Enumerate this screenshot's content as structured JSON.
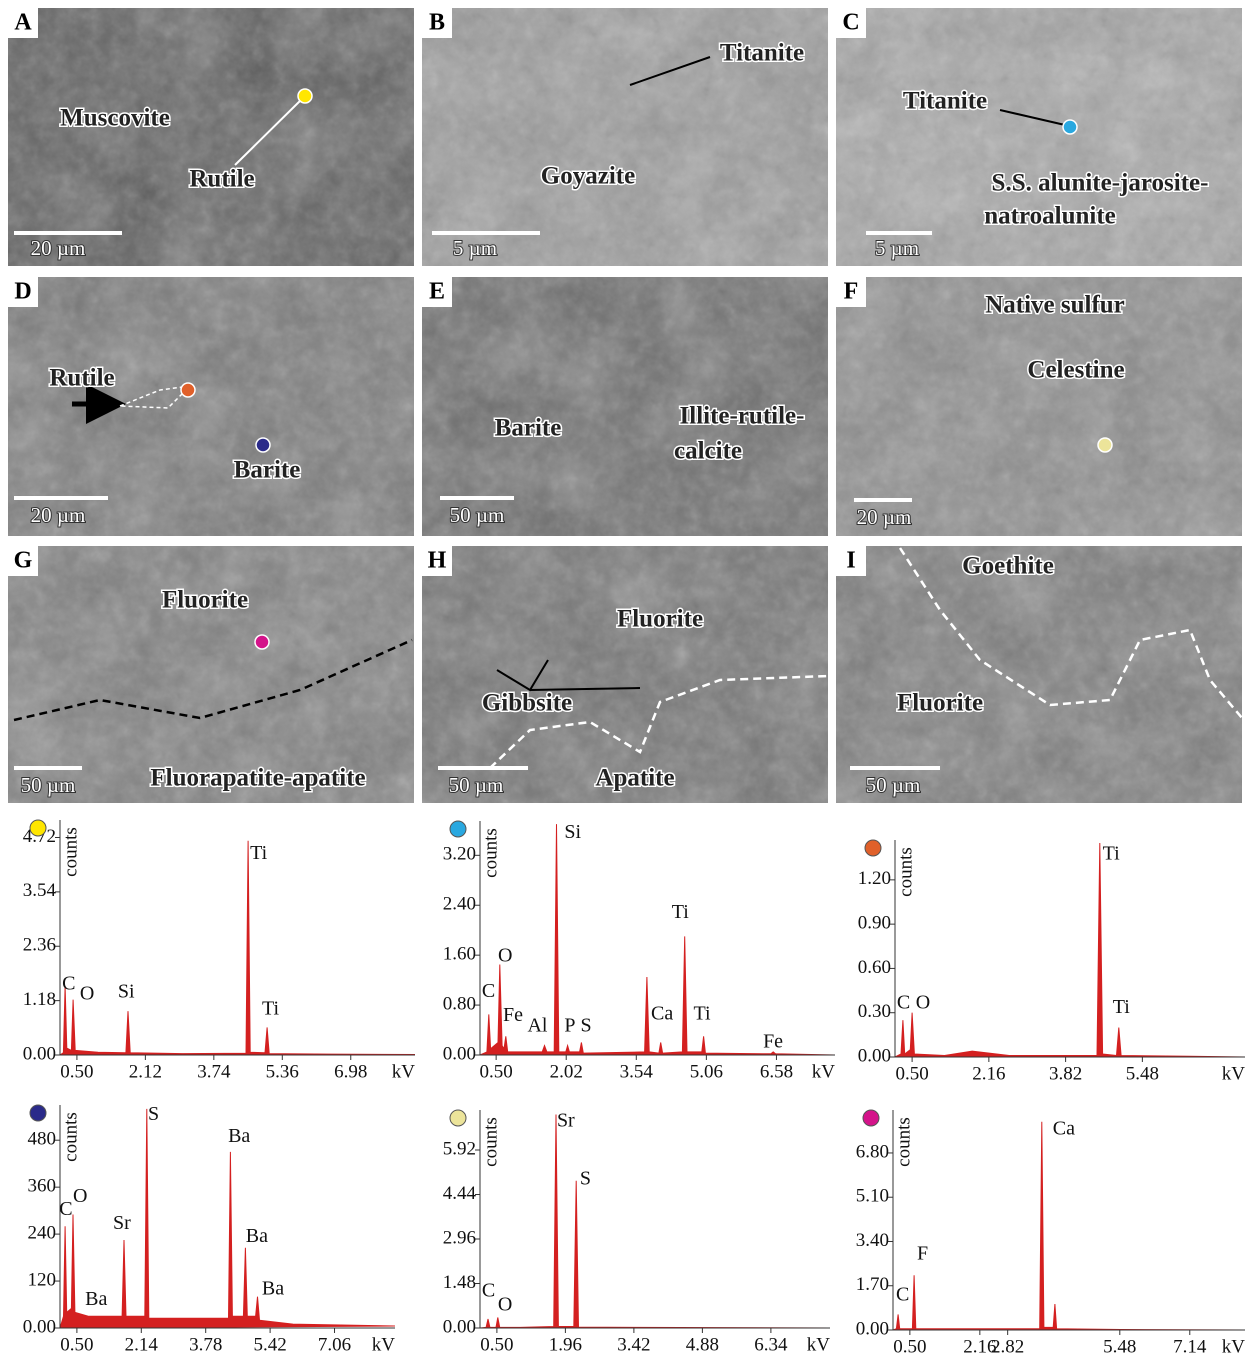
{
  "panels": [
    {
      "letter": "A",
      "labels": [
        "Muscovite",
        "Rutile"
      ],
      "scale": "20 µm"
    },
    {
      "letter": "B",
      "labels": [
        "Titanite",
        "Goyazite"
      ],
      "scale": "5 µm"
    },
    {
      "letter": "C",
      "labels": [
        "Titanite",
        "S.S. alunite-jarosite-",
        "natroalunite"
      ],
      "scale": "5 µm"
    },
    {
      "letter": "D",
      "labels": [
        "Rutile",
        "Barite"
      ],
      "scale": "20 µm"
    },
    {
      "letter": "E",
      "labels": [
        "Barite",
        "Illite-rutile-",
        "calcite"
      ],
      "scale": "50 µm"
    },
    {
      "letter": "F",
      "labels": [
        "Native sulfur",
        "Celestine"
      ],
      "scale": "20 µm"
    },
    {
      "letter": "G",
      "labels": [
        "Fluorite",
        "Fluorapatite-apatite"
      ],
      "scale": "50 µm"
    },
    {
      "letter": "H",
      "labels": [
        "Fluorite",
        "Gibbsite",
        "Apatite"
      ],
      "scale": "50 µm"
    },
    {
      "letter": "I",
      "labels": [
        "Goethite",
        "Fluorite"
      ],
      "scale": "50 µm"
    }
  ],
  "chart_data": [
    {
      "type": "area",
      "marker_color": "#ffe600",
      "color": "#d42020",
      "xlabel": "kV",
      "ylabel": "counts",
      "xlim": [
        0.1,
        8.5
      ],
      "ylim": [
        0,
        5.1
      ],
      "xticks": [
        {
          "value": 0.5,
          "label": "0.50"
        },
        2.12,
        3.74,
        5.36,
        6.98
      ],
      "yticks": [
        {
          "value": 0,
          "label": "0.00"
        },
        1.18,
        2.36,
        3.54,
        4.72
      ],
      "x": [
        0.1,
        0.18,
        0.22,
        0.26,
        0.37,
        0.41,
        0.46,
        1.0,
        1.66,
        1.71,
        1.76,
        3.0,
        4.5,
        4.55,
        4.6,
        4.95,
        5.0,
        5.05,
        6.5,
        8.5
      ],
      "values": [
        0,
        0.05,
        1.5,
        0.15,
        0.1,
        1.2,
        0.1,
        0.06,
        0.05,
        0.95,
        0.05,
        0.03,
        0.04,
        4.65,
        0.06,
        0.05,
        0.6,
        0.03,
        0.02,
        0.01
      ],
      "annotations": [
        {
          "text": "C",
          "x": 0.15,
          "y": 1.52
        },
        {
          "text": "O",
          "x": 0.57,
          "y": 1.3
        },
        {
          "text": "Si",
          "x": 1.47,
          "y": 1.35
        },
        {
          "text": "Ti",
          "x": 4.6,
          "y": 4.35
        },
        {
          "text": "Ti",
          "x": 4.88,
          "y": 0.98
        }
      ]
    },
    {
      "type": "area",
      "marker_color": "#29a8e0",
      "color": "#d42020",
      "xlabel": "kV",
      "ylabel": "counts",
      "xlim": [
        0.15,
        7.85
      ],
      "ylim": [
        0,
        3.75
      ],
      "xticks": [
        {
          "value": 0.5,
          "label": "0.50"
        },
        2.02,
        3.54,
        5.06,
        6.58
      ],
      "yticks": [
        {
          "value": 0,
          "label": "0.00"
        },
        {
          "value": 0.8,
          "label": "0.80"
        },
        {
          "value": 1.6,
          "label": "1.60"
        },
        {
          "value": 2.4,
          "label": "2.40"
        },
        {
          "value": 3.2,
          "label": "3.20"
        }
      ],
      "x": [
        0.15,
        0.3,
        0.34,
        0.38,
        0.54,
        0.58,
        0.63,
        0.67,
        0.71,
        0.75,
        1.5,
        1.55,
        1.6,
        1.76,
        1.81,
        1.86,
        2.01,
        2.05,
        2.09,
        2.31,
        2.35,
        2.39,
        3.72,
        3.77,
        3.82,
        4.03,
        4.07,
        4.11,
        4.54,
        4.59,
        4.64,
        4.96,
        5.0,
        5.04,
        6.46,
        6.51,
        6.56,
        7.85
      ],
      "values": [
        0,
        0.05,
        0.65,
        0.1,
        0.2,
        1.45,
        0.15,
        0.1,
        0.3,
        0.05,
        0.05,
        0.15,
        0.05,
        0.05,
        3.7,
        0.05,
        0.05,
        0.15,
        0.05,
        0.05,
        0.2,
        0.03,
        0.05,
        1.25,
        0.05,
        0.03,
        0.2,
        0.03,
        0.05,
        1.9,
        0.05,
        0.05,
        0.3,
        0.03,
        0.02,
        0.05,
        0.02,
        0
      ],
      "annotations": [
        {
          "text": "C",
          "x": 0.19,
          "y": 1.0
        },
        {
          "text": "O",
          "x": 0.54,
          "y": 1.57
        },
        {
          "text": "Fe",
          "x": 0.65,
          "y": 0.62
        },
        {
          "text": "Al",
          "x": 1.18,
          "y": 0.45
        },
        {
          "text": "P",
          "x": 1.98,
          "y": 0.45
        },
        {
          "text": "S",
          "x": 2.33,
          "y": 0.45
        },
        {
          "text": "Si",
          "x": 1.98,
          "y": 3.55
        },
        {
          "text": "Ca",
          "x": 3.86,
          "y": 0.64
        },
        {
          "text": "Ti",
          "x": 4.31,
          "y": 2.27
        },
        {
          "text": "Ti",
          "x": 4.78,
          "y": 0.64
        },
        {
          "text": "Fe",
          "x": 6.29,
          "y": 0.19
        }
      ]
    },
    {
      "type": "area",
      "marker_color": "#e0602a",
      "color": "#d42020",
      "xlabel": "kV",
      "ylabel": "counts",
      "xlim": [
        0.13,
        7.7
      ],
      "ylim": [
        0,
        1.47
      ],
      "xticks": [
        {
          "value": 0.5,
          "label": "0.50"
        },
        2.16,
        3.82,
        5.48
      ],
      "yticks": [
        {
          "value": 0,
          "label": "0.00"
        },
        {
          "value": 0.3,
          "label": "0.30"
        },
        {
          "value": 0.6,
          "label": "0.60"
        },
        {
          "value": 0.9,
          "label": "0.90"
        },
        {
          "value": 1.2,
          "label": "1.20"
        }
      ],
      "x": [
        0.13,
        0.26,
        0.3,
        0.34,
        0.46,
        0.5,
        0.55,
        1.2,
        1.8,
        2.6,
        4.5,
        4.56,
        4.62,
        4.92,
        4.97,
        5.02,
        6.5,
        7.7
      ],
      "values": [
        0,
        0.02,
        0.25,
        0.02,
        0.05,
        0.3,
        0.02,
        0.01,
        0.04,
        0.01,
        0.01,
        1.45,
        0.02,
        0.01,
        0.2,
        0.01,
        0.005,
        0
      ],
      "annotations": [
        {
          "text": "C",
          "x": 0.17,
          "y": 0.36
        },
        {
          "text": "O",
          "x": 0.58,
          "y": 0.36
        },
        {
          "text": "Ti",
          "x": 4.62,
          "y": 1.37
        },
        {
          "text": "Ti",
          "x": 4.84,
          "y": 0.33
        }
      ]
    },
    {
      "type": "area",
      "marker_color": "#2a2a8a",
      "color": "#d42020",
      "xlabel": "kV",
      "ylabel": "counts",
      "xlim": [
        0.07,
        8.6
      ],
      "ylim": [
        0,
        570
      ],
      "xticks": [
        {
          "value": 0.5,
          "label": "0.50"
        },
        2.14,
        3.78,
        5.42,
        7.06
      ],
      "yticks": [
        {
          "value": 0,
          "label": "0.00"
        },
        120,
        240,
        360,
        480
      ],
      "x": [
        0.07,
        0.16,
        0.2,
        0.24,
        0.36,
        0.4,
        0.45,
        0.8,
        1.65,
        1.7,
        1.75,
        2.23,
        2.28,
        2.33,
        3.5,
        4.36,
        4.41,
        4.46,
        4.74,
        4.79,
        4.84,
        5.05,
        5.1,
        5.15,
        6.0,
        8.6
      ],
      "values": [
        0,
        30,
        260,
        40,
        50,
        290,
        40,
        30,
        30,
        225,
        30,
        30,
        560,
        25,
        25,
        25,
        450,
        30,
        30,
        205,
        30,
        30,
        80,
        20,
        10,
        5
      ],
      "annotations": [
        {
          "text": "C",
          "x": 0.05,
          "y": 300
        },
        {
          "text": "O",
          "x": 0.4,
          "y": 334
        },
        {
          "text": "Ba",
          "x": 0.71,
          "y": 71
        },
        {
          "text": "Sr",
          "x": 1.42,
          "y": 265
        },
        {
          "text": "S",
          "x": 2.31,
          "y": 543
        },
        {
          "text": "Ba",
          "x": 4.35,
          "y": 487
        },
        {
          "text": "Ba",
          "x": 4.8,
          "y": 232
        },
        {
          "text": "Ba",
          "x": 5.21,
          "y": 97
        }
      ]
    },
    {
      "type": "area",
      "marker_color": "#ece49a",
      "color": "#d42020",
      "xlabel": "kV",
      "ylabel": "counts",
      "xlim": [
        0.14,
        7.6
      ],
      "ylim": [
        0,
        7.25
      ],
      "xticks": [
        {
          "value": 0.5,
          "label": "0.50"
        },
        1.96,
        3.42,
        4.88,
        6.34
      ],
      "yticks": [
        {
          "value": 0,
          "label": "0.00"
        },
        1.48,
        2.96,
        4.44,
        5.92
      ],
      "x": [
        0.14,
        0.27,
        0.31,
        0.35,
        0.48,
        0.52,
        0.56,
        1.0,
        1.71,
        1.76,
        1.81,
        2.14,
        2.19,
        2.24,
        3.5,
        7.6
      ],
      "values": [
        0,
        0.02,
        0.3,
        0.02,
        0.02,
        0.35,
        0.02,
        0.02,
        0.05,
        7.1,
        0.05,
        0.05,
        4.9,
        0.03,
        0.02,
        0
      ],
      "annotations": [
        {
          "text": "C",
          "x": 0.18,
          "y": 1.2
        },
        {
          "text": "O",
          "x": 0.52,
          "y": 0.73
        },
        {
          "text": "Sr",
          "x": 1.78,
          "y": 6.85
        },
        {
          "text": "S",
          "x": 2.27,
          "y": 4.92
        }
      ]
    },
    {
      "type": "area",
      "marker_color": "#d4138a",
      "color": "#d42020",
      "xlabel": "kV",
      "ylabel": "counts",
      "xlim": [
        0.1,
        8.45
      ],
      "ylim": [
        0,
        8.45
      ],
      "xticks": [
        {
          "value": 0.5,
          "label": "0.50"
        },
        2.16,
        2.82,
        5.48,
        7.14
      ],
      "yticks": [
        {
          "value": 0,
          "label": "0.00"
        },
        {
          "value": 1.7,
          "label": "1.70"
        },
        {
          "value": 3.4,
          "label": "3.40"
        },
        {
          "value": 5.1,
          "label": "5.10"
        },
        {
          "value": 6.8,
          "label": "6.80"
        }
      ],
      "x": [
        0.1,
        0.18,
        0.22,
        0.26,
        0.56,
        0.6,
        0.64,
        1.5,
        3.58,
        3.63,
        3.68,
        3.9,
        3.94,
        3.98,
        5.5,
        8.45
      ],
      "values": [
        0,
        0.05,
        0.6,
        0.05,
        0.05,
        2.1,
        0.05,
        0.05,
        0.05,
        8.0,
        0.1,
        0.1,
        1.0,
        0.05,
        0.02,
        0
      ],
      "annotations": [
        {
          "text": "C",
          "x": 0.17,
          "y": 1.31
        },
        {
          "text": "F",
          "x": 0.67,
          "y": 2.88
        },
        {
          "text": "Ca",
          "x": 3.89,
          "y": 7.69
        }
      ]
    }
  ]
}
